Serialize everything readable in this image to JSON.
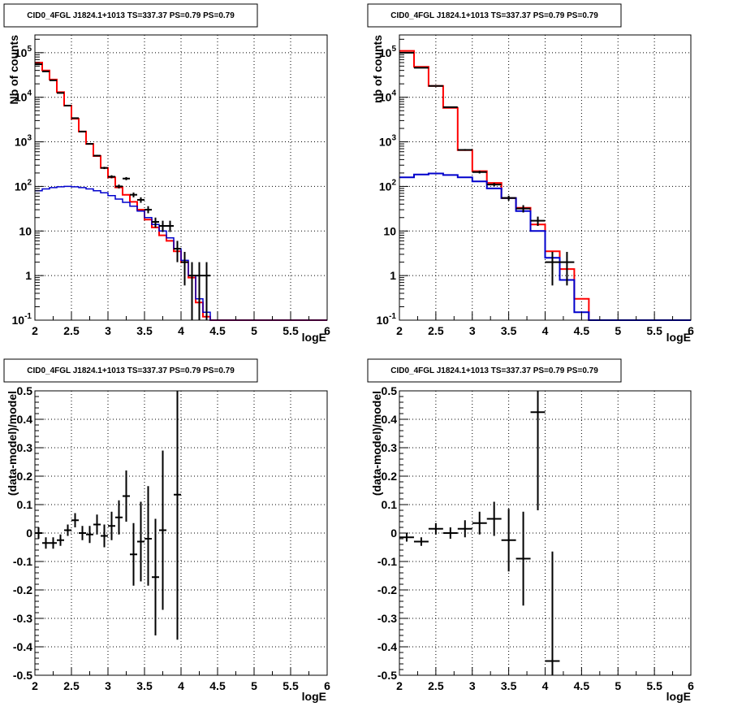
{
  "chart_data": [
    {
      "type": "line",
      "title": "CID0_4FGL J1824.1+1013 TS=337.37 PS=0.79 PS=0.79",
      "xlabel": "logE",
      "ylabel": "Nb of counts",
      "xlim": [
        2,
        6
      ],
      "ylim": [
        0.1,
        250000
      ],
      "yscale": "log",
      "grid": true,
      "x_ticks": [
        "2",
        "2.5",
        "3",
        "3.5",
        "4",
        "4.5",
        "5",
        "5.5",
        "6"
      ],
      "y_ticks": [
        {
          "value": 0.1,
          "base": "10",
          "exp": "-1"
        },
        {
          "value": 1,
          "base": "1",
          "exp": ""
        },
        {
          "value": 10,
          "base": "10",
          "exp": ""
        },
        {
          "value": 100,
          "base": "10",
          "exp": "2"
        },
        {
          "value": 1000,
          "base": "10",
          "exp": "3"
        },
        {
          "value": 10000,
          "base": "10",
          "exp": "4"
        },
        {
          "value": 100000,
          "base": "10",
          "exp": "5"
        }
      ],
      "bin_width": 0.1,
      "bin_starts": [
        2.0,
        2.1,
        2.2,
        2.3,
        2.4,
        2.5,
        2.6,
        2.7,
        2.8,
        2.9,
        3.0,
        3.1,
        3.2,
        3.3,
        3.4,
        3.5,
        3.6,
        3.7,
        3.8,
        3.9,
        4.0,
        4.1,
        4.2,
        4.3,
        4.4,
        4.5,
        4.6,
        4.7,
        4.8,
        4.9,
        5.0,
        5.1,
        5.2,
        5.3,
        5.4,
        5.5,
        5.6,
        5.7,
        5.8,
        5.9
      ],
      "series": [
        {
          "name": "",
          "style": "step",
          "color": "#ff0000",
          "values": [
            60000,
            40000,
            25000,
            13000,
            6500,
            3300,
            1700,
            900,
            480,
            260,
            160,
            95,
            65,
            45,
            30,
            18,
            12,
            8,
            6,
            3.5,
            2,
            0.9,
            0.25,
            0.12,
            0.1,
            0.1,
            0.1,
            0.1,
            0.1,
            0.1,
            0.1,
            0.1,
            0.1,
            0.1,
            0.1,
            0.1,
            0.1,
            0.1,
            0.1,
            0.1
          ]
        },
        {
          "name": "",
          "style": "step",
          "color": "#0000cc",
          "width": 1.5,
          "values": [
            80,
            88,
            94,
            98,
            100,
            98,
            94,
            88,
            80,
            72,
            62,
            52,
            44,
            36,
            28,
            20,
            14,
            10,
            7,
            4,
            2.2,
            1.0,
            0.3,
            0.15,
            0.1,
            0.1,
            0.1,
            0.1,
            0.1,
            0.1,
            0.1,
            0.1,
            0.1,
            0.1,
            0.1,
            0.1,
            0.1,
            0.1,
            0.1,
            0.1
          ]
        },
        {
          "name": "",
          "style": "errorbar",
          "color": "#000000",
          "points": [
            {
              "x": 2.05,
              "y": 55000,
              "lo": 54500,
              "hi": 55500
            },
            {
              "x": 2.15,
              "y": 38000,
              "lo": 37600,
              "hi": 38400
            },
            {
              "x": 2.25,
              "y": 24000,
              "lo": 23700,
              "hi": 24300
            },
            {
              "x": 2.35,
              "y": 12500,
              "lo": 12300,
              "hi": 12700
            },
            {
              "x": 2.45,
              "y": 6500,
              "lo": 6400,
              "hi": 6600
            },
            {
              "x": 2.55,
              "y": 3400,
              "lo": 3340,
              "hi": 3460
            },
            {
              "x": 2.65,
              "y": 1700,
              "lo": 1660,
              "hi": 1740
            },
            {
              "x": 2.75,
              "y": 900,
              "lo": 870,
              "hi": 930
            },
            {
              "x": 2.85,
              "y": 490,
              "lo": 470,
              "hi": 510
            },
            {
              "x": 2.95,
              "y": 260,
              "lo": 245,
              "hi": 275
            },
            {
              "x": 3.05,
              "y": 165,
              "lo": 152,
              "hi": 178
            },
            {
              "x": 3.15,
              "y": 100,
              "lo": 90,
              "hi": 110
            },
            {
              "x": 3.25,
              "y": 150,
              "lo": 138,
              "hi": 162
            },
            {
              "x": 3.35,
              "y": 65,
              "lo": 57,
              "hi": 73
            },
            {
              "x": 3.45,
              "y": 50,
              "lo": 43,
              "hi": 57
            },
            {
              "x": 3.55,
              "y": 30,
              "lo": 25,
              "hi": 36
            },
            {
              "x": 3.65,
              "y": 16,
              "lo": 12,
              "hi": 20
            },
            {
              "x": 3.75,
              "y": 13,
              "lo": 9.5,
              "hi": 17
            },
            {
              "x": 3.85,
              "y": 13,
              "lo": 9.5,
              "hi": 17
            },
            {
              "x": 3.95,
              "y": 4,
              "lo": 2,
              "hi": 6
            },
            {
              "x": 4.05,
              "y": 2,
              "lo": 0.6,
              "hi": 3.4
            },
            {
              "x": 4.15,
              "y": 1,
              "lo": 0.1,
              "hi": 2
            },
            {
              "x": 4.25,
              "y": 1,
              "lo": 0.1,
              "hi": 2
            },
            {
              "x": 4.35,
              "y": 1,
              "lo": 0.1,
              "hi": 2
            }
          ]
        }
      ]
    },
    {
      "type": "line",
      "title": "CID0_4FGL J1824.1+1013 TS=337.37 PS=0.79 PS=0.79",
      "xlabel": "logE",
      "ylabel": "nb of counts",
      "xlim": [
        2,
        6
      ],
      "ylim": [
        0.1,
        250000
      ],
      "yscale": "log",
      "grid": true,
      "x_ticks": [
        "2",
        "2.5",
        "3",
        "3.5",
        "4",
        "4.5",
        "5",
        "5.5",
        "6"
      ],
      "y_ticks": [
        {
          "value": 0.1,
          "base": "10",
          "exp": "-1"
        },
        {
          "value": 1,
          "base": "1",
          "exp": ""
        },
        {
          "value": 10,
          "base": "10",
          "exp": ""
        },
        {
          "value": 100,
          "base": "10",
          "exp": "2"
        },
        {
          "value": 1000,
          "base": "10",
          "exp": "3"
        },
        {
          "value": 10000,
          "base": "10",
          "exp": "4"
        },
        {
          "value": 100000,
          "base": "10",
          "exp": "5"
        }
      ],
      "bin_width": 0.2,
      "bin_starts": [
        2.0,
        2.2,
        2.4,
        2.6,
        2.8,
        3.0,
        3.2,
        3.4,
        3.6,
        3.8,
        4.0,
        4.2,
        4.4,
        4.6,
        4.8,
        5.0,
        5.2,
        5.4,
        5.6,
        5.8
      ],
      "series": [
        {
          "name": "",
          "style": "step",
          "color": "#ff0000",
          "values": [
            110000,
            48000,
            18000,
            5800,
            650,
            220,
            120,
            55,
            33,
            14,
            3.5,
            1.4,
            0.3,
            0.1,
            0.1,
            0.1,
            0.1,
            0.1,
            0.1,
            0.1
          ]
        },
        {
          "name": "",
          "style": "step",
          "color": "#0000cc",
          "width": 2,
          "values": [
            160,
            185,
            195,
            180,
            160,
            130,
            90,
            55,
            28,
            10,
            2.5,
            0.8,
            0.15,
            0.1,
            0.1,
            0.1,
            0.1,
            0.1,
            0.1,
            0.1
          ]
        },
        {
          "name": "",
          "style": "errorbar",
          "color": "#000000",
          "points": [
            {
              "x": 2.1,
              "y": 100000,
              "lo": 99500,
              "hi": 100500
            },
            {
              "x": 2.3,
              "y": 46000,
              "lo": 45600,
              "hi": 46400
            },
            {
              "x": 2.5,
              "y": 18000,
              "lo": 17800,
              "hi": 18200
            },
            {
              "x": 2.7,
              "y": 6000,
              "lo": 5920,
              "hi": 6080
            },
            {
              "x": 2.9,
              "y": 660,
              "lo": 630,
              "hi": 690
            },
            {
              "x": 3.1,
              "y": 210,
              "lo": 195,
              "hi": 225
            },
            {
              "x": 3.3,
              "y": 110,
              "lo": 100,
              "hi": 120
            },
            {
              "x": 3.5,
              "y": 55,
              "lo": 48,
              "hi": 62
            },
            {
              "x": 3.7,
              "y": 32,
              "lo": 26,
              "hi": 38
            },
            {
              "x": 3.9,
              "y": 17,
              "lo": 13,
              "hi": 21
            },
            {
              "x": 4.1,
              "y": 2,
              "lo": 0.6,
              "hi": 3.4
            },
            {
              "x": 4.3,
              "y": 2,
              "lo": 0.6,
              "hi": 3.4
            }
          ]
        }
      ]
    },
    {
      "type": "scatter",
      "title": "CID0_4FGL J1824.1+1013 TS=337.37 PS=0.79 PS=0.79",
      "xlabel": "logE",
      "ylabel": "(data-model)/model",
      "xlim": [
        2,
        6
      ],
      "ylim": [
        -0.5,
        0.5
      ],
      "yscale": "linear",
      "grid": true,
      "x_ticks": [
        "2",
        "2.5",
        "3",
        "3.5",
        "4",
        "4.5",
        "5",
        "5.5",
        "6"
      ],
      "y_ticks": [
        "-0.5",
        "-0.4",
        "-0.3",
        "-0.2",
        "-0.1",
        "0",
        "0.1",
        "0.2",
        "0.3",
        "0.4",
        "0.5"
      ],
      "bin_width": 0.1,
      "series": [
        {
          "name": "",
          "style": "errorbar",
          "color": "#000000",
          "points": [
            {
              "x": 2.05,
              "y": 0.0,
              "lo": -0.02,
              "hi": 0.02
            },
            {
              "x": 2.15,
              "y": -0.035,
              "lo": -0.055,
              "hi": -0.015
            },
            {
              "x": 2.25,
              "y": -0.035,
              "lo": -0.055,
              "hi": -0.015
            },
            {
              "x": 2.35,
              "y": -0.025,
              "lo": -0.045,
              "hi": -0.005
            },
            {
              "x": 2.45,
              "y": 0.01,
              "lo": -0.01,
              "hi": 0.03
            },
            {
              "x": 2.55,
              "y": 0.045,
              "lo": 0.02,
              "hi": 0.07
            },
            {
              "x": 2.65,
              "y": 0.0,
              "lo": -0.025,
              "hi": 0.025
            },
            {
              "x": 2.75,
              "y": -0.005,
              "lo": -0.035,
              "hi": 0.025
            },
            {
              "x": 2.85,
              "y": 0.03,
              "lo": -0.005,
              "hi": 0.065
            },
            {
              "x": 2.95,
              "y": -0.01,
              "lo": -0.05,
              "hi": 0.03
            },
            {
              "x": 3.05,
              "y": 0.025,
              "lo": -0.025,
              "hi": 0.075
            },
            {
              "x": 3.15,
              "y": 0.055,
              "lo": -0.005,
              "hi": 0.115
            },
            {
              "x": 3.25,
              "y": 0.13,
              "lo": 0.04,
              "hi": 0.22
            },
            {
              "x": 3.35,
              "y": -0.075,
              "lo": -0.185,
              "hi": 0.035
            },
            {
              "x": 3.45,
              "y": -0.03,
              "lo": -0.17,
              "hi": 0.11
            },
            {
              "x": 3.55,
              "y": -0.02,
              "lo": -0.185,
              "hi": 0.165
            },
            {
              "x": 3.65,
              "y": -0.155,
              "lo": -0.36,
              "hi": 0.05
            },
            {
              "x": 3.75,
              "y": 0.01,
              "lo": -0.27,
              "hi": 0.29
            },
            {
              "x": 3.95,
              "y": 0.135,
              "lo": -0.375,
              "hi": 0.5
            }
          ]
        }
      ]
    },
    {
      "type": "scatter",
      "title": "CID0_4FGL J1824.1+1013 TS=337.37 PS=0.79 PS=0.79",
      "xlabel": "logE",
      "ylabel": "(data-model)/model",
      "xlim": [
        2,
        6
      ],
      "ylim": [
        -0.5,
        0.5
      ],
      "yscale": "linear",
      "grid": true,
      "x_ticks": [
        "2",
        "2.5",
        "3",
        "3.5",
        "4",
        "4.5",
        "5",
        "5.5",
        "6"
      ],
      "y_ticks": [
        "-0.5",
        "-0.4",
        "-0.3",
        "-0.2",
        "-0.1",
        "0",
        "0.1",
        "0.2",
        "0.3",
        "0.4",
        "0.5"
      ],
      "bin_width": 0.2,
      "series": [
        {
          "name": "",
          "style": "errorbar",
          "color": "#000000",
          "points": [
            {
              "x": 2.1,
              "y": -0.015,
              "lo": -0.03,
              "hi": 0.0
            },
            {
              "x": 2.3,
              "y": -0.03,
              "lo": -0.045,
              "hi": -0.015
            },
            {
              "x": 2.5,
              "y": 0.015,
              "lo": -0.005,
              "hi": 0.035
            },
            {
              "x": 2.7,
              "y": 0.0,
              "lo": -0.02,
              "hi": 0.02
            },
            {
              "x": 2.9,
              "y": 0.015,
              "lo": -0.015,
              "hi": 0.045
            },
            {
              "x": 3.1,
              "y": 0.035,
              "lo": -0.005,
              "hi": 0.075
            },
            {
              "x": 3.3,
              "y": 0.05,
              "lo": -0.01,
              "hi": 0.11
            },
            {
              "x": 3.5,
              "y": -0.025,
              "lo": -0.135,
              "hi": 0.085
            },
            {
              "x": 3.7,
              "y": -0.09,
              "lo": -0.255,
              "hi": 0.075
            },
            {
              "x": 3.9,
              "y": 0.425,
              "lo": 0.08,
              "hi": 0.5
            },
            {
              "x": 4.1,
              "y": -0.45,
              "lo": -0.5,
              "hi": -0.065
            }
          ]
        }
      ]
    }
  ]
}
